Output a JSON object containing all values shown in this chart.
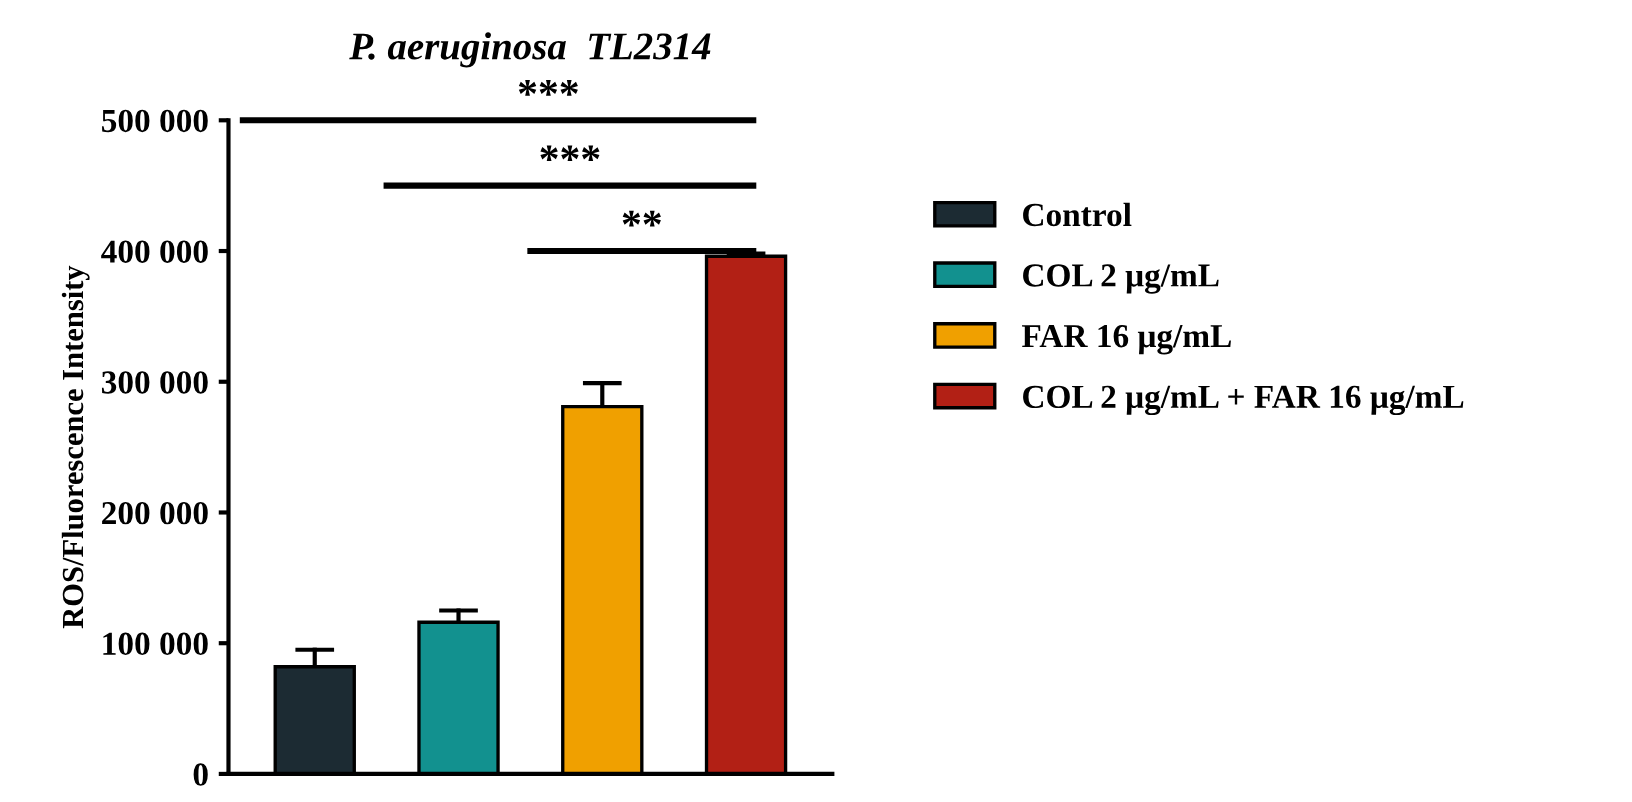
{
  "chart_data": {
    "type": "bar",
    "title": "P. aeruginosa  TL2314",
    "ylabel": "ROS/Fluorescence Intensity",
    "categories": [
      null,
      null,
      null,
      null
    ],
    "series": [
      {
        "name": "Control",
        "color": "#1c2b33",
        "values": [
          82000,
          null,
          null,
          null
        ],
        "errors": [
          [
            82000,
            95000
          ],
          null,
          null,
          null
        ]
      },
      {
        "name": "COL 2 μg/mL",
        "color": "#12918f",
        "values": [
          null,
          116000,
          null,
          null
        ],
        "errors": [
          null,
          [
            116000,
            125000
          ],
          null,
          null
        ]
      },
      {
        "name": "FAR 16 μg/mL",
        "color": "#f0a000",
        "values": [
          null,
          null,
          281000,
          null
        ],
        "errors": [
          null,
          null,
          [
            281000,
            299000
          ],
          null
        ]
      },
      {
        "name": "COL 2 μg/mL + FAR 16 μg/mL",
        "color": "#b22015",
        "values": [
          null,
          null,
          null,
          396000
        ],
        "errors": [
          null,
          null,
          null,
          [
            396000,
            398000
          ]
        ]
      }
    ],
    "ylim": [
      0,
      500000
    ],
    "yticks": [
      {
        "value": 0,
        "label": "0"
      },
      {
        "value": 100000,
        "label": "100 000"
      },
      {
        "value": 200000,
        "label": "200 000"
      },
      {
        "value": 300000,
        "label": "300 000"
      },
      {
        "value": 400000,
        "label": "400 000"
      },
      {
        "value": 500000,
        "label": "500 000"
      }
    ],
    "annotations": [
      "***",
      "***",
      "**"
    ],
    "legend": "right",
    "grid": false,
    "tick_labels": "y"
  }
}
